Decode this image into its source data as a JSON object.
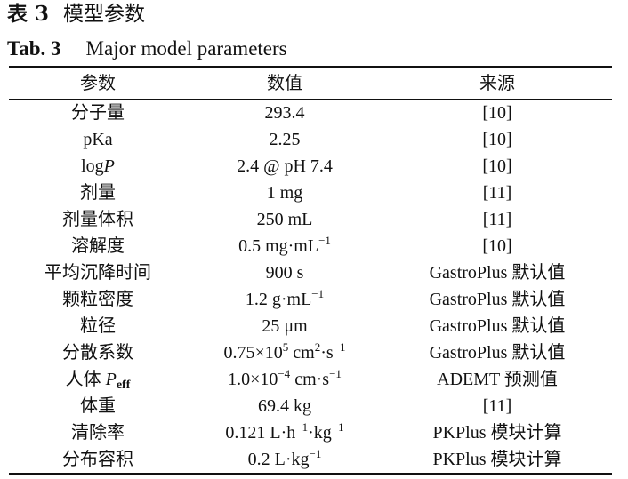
{
  "caption_cn": {
    "label": "表 3",
    "text": "模型参数"
  },
  "caption_en": {
    "label": "Tab. 3",
    "text": "Major model parameters"
  },
  "headers": [
    "参数",
    "数值",
    "来源"
  ],
  "rows": [
    {
      "param": "分子量",
      "value": "293.4",
      "source": "[10]"
    },
    {
      "param": "pKa",
      "value": "2.25",
      "source": "[10]"
    },
    {
      "param": "logP",
      "value": "2.4 @ pH 7.4",
      "source": "[10]"
    },
    {
      "param": "剂量",
      "value": "1 mg",
      "source": "[11]"
    },
    {
      "param": "剂量体积",
      "value": "250 mL",
      "source": "[11]"
    },
    {
      "param": "溶解度",
      "value": "0.5 mg·mL−1",
      "source": "[10]"
    },
    {
      "param": "平均沉降时间",
      "value": "900 s",
      "source": "GastroPlus 默认值"
    },
    {
      "param": "颗粒密度",
      "value": "1.2 g·mL−1",
      "source": "GastroPlus 默认值"
    },
    {
      "param": "粒径",
      "value": "25 μm",
      "source": "GastroPlus 默认值"
    },
    {
      "param": "分散系数",
      "value": "0.75×105 cm2·s−1",
      "source": "GastroPlus 默认值"
    },
    {
      "param": "人体 Peff",
      "value": "1.0×10−4 cm·s−1",
      "source": "ADEMT 预测值"
    },
    {
      "param": "体重",
      "value": "69.4 kg",
      "source": "[11]"
    },
    {
      "param": "清除率",
      "value": "0.121 L·h−1·kg−1",
      "source": "PKPlus 模块计算"
    },
    {
      "param": "分布容积",
      "value": "0.2 L·kg−1",
      "source": "PKPlus 模块计算"
    }
  ]
}
